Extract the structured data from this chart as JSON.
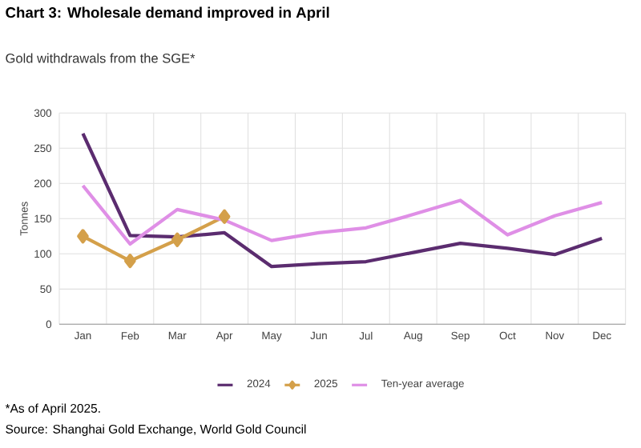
{
  "chart_data": {
    "type": "line",
    "title": "Chart 3: Wholesale demand improved in April",
    "subtitle": "Gold withdrawals from the SGE*",
    "ylabel": "Tonnes",
    "categories": [
      "Jan",
      "Feb",
      "Mar",
      "Apr",
      "May",
      "Jun",
      "Jul",
      "Aug",
      "Sep",
      "Oct",
      "Nov",
      "Dec"
    ],
    "series": [
      {
        "name": "2024",
        "color": "#5b2c6f",
        "marker": "none",
        "values": [
          271,
          126,
          124,
          130,
          82,
          86,
          89,
          102,
          115,
          108,
          99,
          122
        ]
      },
      {
        "name": "2025",
        "color": "#d4a04a",
        "marker": "diamond",
        "values": [
          125,
          90,
          120,
          153,
          null,
          null,
          null,
          null,
          null,
          null,
          null,
          null
        ]
      },
      {
        "name": "Ten-year average",
        "color": "#df8fe6",
        "marker": "none",
        "values": [
          197,
          114,
          163,
          148,
          119,
          130,
          137,
          156,
          176,
          127,
          154,
          173
        ]
      }
    ],
    "ylim": [
      0,
      300
    ],
    "yticks": [
      0,
      50,
      100,
      150,
      200,
      250,
      300
    ],
    "grid": true,
    "legend": "bottom",
    "annotations": [
      "*As of April 2025.",
      "Source: Shanghai Gold Exchange, World Gold Council"
    ]
  }
}
